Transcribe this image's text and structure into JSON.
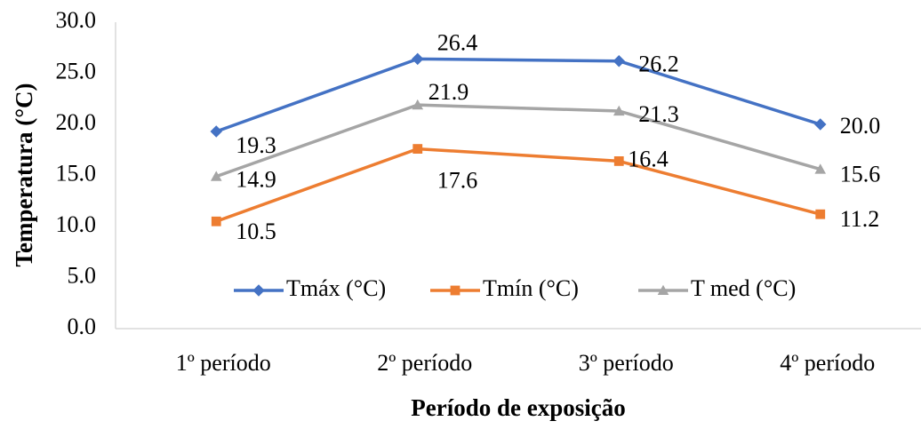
{
  "chart_data": {
    "type": "line",
    "categories": [
      "1º período",
      "2º período",
      "3º período",
      "4º período"
    ],
    "series": [
      {
        "name": "Tmáx (°C)",
        "values": [
          19.3,
          26.4,
          26.2,
          20.0
        ],
        "color": "#4472C4",
        "marker": "diamond"
      },
      {
        "name": "Tmín (°C)",
        "values": [
          10.5,
          17.6,
          16.4,
          11.2
        ],
        "color": "#ED7D31",
        "marker": "square"
      },
      {
        "name": "T med (°C)",
        "values": [
          14.9,
          21.9,
          21.3,
          15.6
        ],
        "color": "#A5A5A5",
        "marker": "triangle"
      }
    ],
    "data_labels": [
      [
        "19.3",
        "26.4",
        "26.2",
        "20.0"
      ],
      [
        "10.5",
        "17.6",
        "16.4",
        "11.2"
      ],
      [
        "14.9",
        "21.9",
        "21.3",
        "15.6"
      ]
    ],
    "ylim": [
      0,
      30
    ],
    "yticks": [
      "0.0",
      "5.0",
      "10.0",
      "15.0",
      "20.0",
      "25.0",
      "30.0"
    ],
    "xlabel": "Período de exposição",
    "ylabel": "Temperatura (°C)",
    "title": "",
    "grid": false,
    "legend": "inside-bottom-center"
  }
}
